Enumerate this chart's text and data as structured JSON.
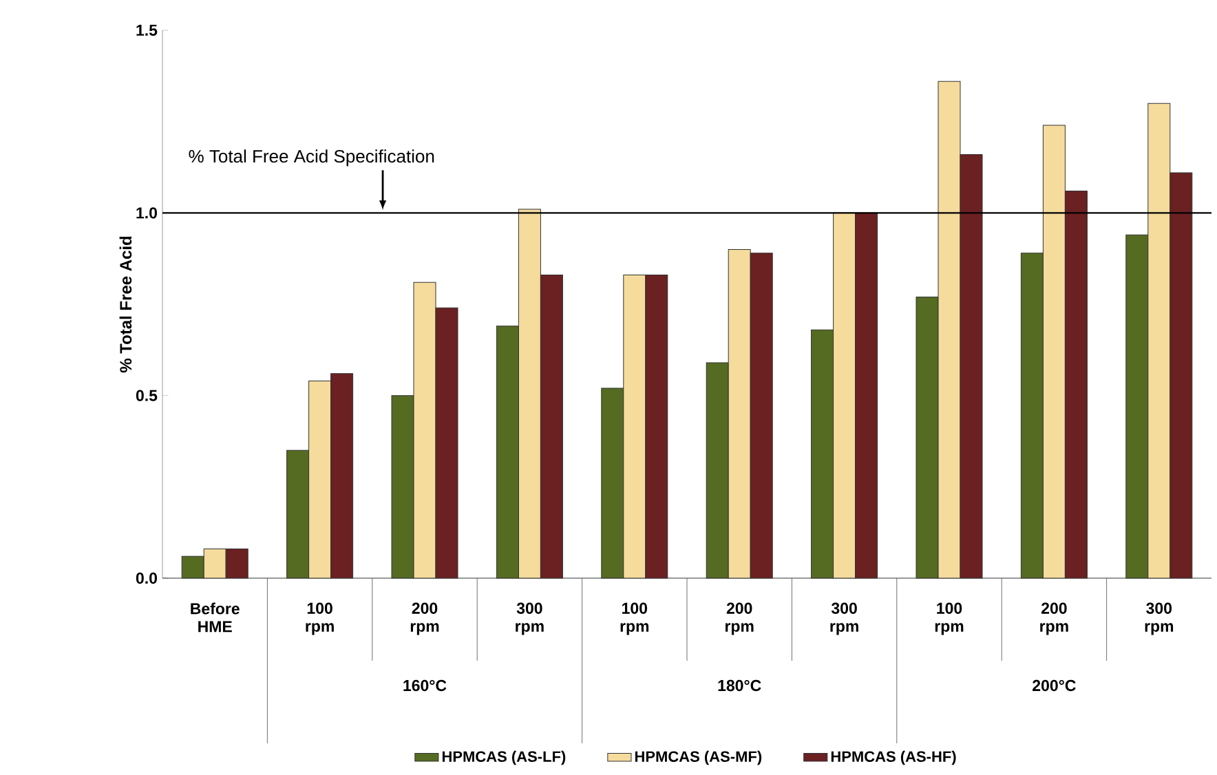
{
  "chart_data": {
    "type": "bar",
    "ylabel": "% Total Free Acid",
    "categories": [
      "Before HME",
      "100 rpm",
      "200 rpm",
      "300 rpm",
      "100 rpm",
      "200 rpm",
      "300 rpm",
      "100 rpm",
      "200 rpm",
      "300 rpm"
    ],
    "annotations": [
      "160°C",
      "180°C",
      "200°C"
    ],
    "series": [
      {
        "name": "HPMCAS (AS-LF)",
        "color": "#556b22",
        "values": [
          0.06,
          0.35,
          0.5,
          0.69,
          0.52,
          0.59,
          0.68,
          0.77,
          0.89,
          0.94
        ]
      },
      {
        "name": "HPMCAS (AS-MF)",
        "color": "#f5dc9c",
        "values": [
          0.08,
          0.54,
          0.81,
          1.01,
          0.83,
          0.9,
          1.0,
          1.36,
          1.24,
          1.3
        ]
      },
      {
        "name": "HPMCAS (AS-HF)",
        "color": "#6b2022",
        "values": [
          0.08,
          0.56,
          0.74,
          0.83,
          0.83,
          0.89,
          1.0,
          1.16,
          1.06,
          1.11
        ]
      }
    ],
    "ylim": [
      0,
      1.5
    ],
    "yticks": [
      {
        "value": 0,
        "label": "0.0"
      },
      {
        "value": 0.5,
        "label": "0.5"
      },
      {
        "value": 1,
        "label": "1.0"
      },
      {
        "value": 1.5,
        "label": "1.5"
      }
    ],
    "ref_lines": [
      {
        "axis": "y",
        "value": 1.0,
        "label": "% Total Free Acid Specification",
        "color": "#000000"
      }
    ],
    "grid": false,
    "legend": "bottom"
  }
}
